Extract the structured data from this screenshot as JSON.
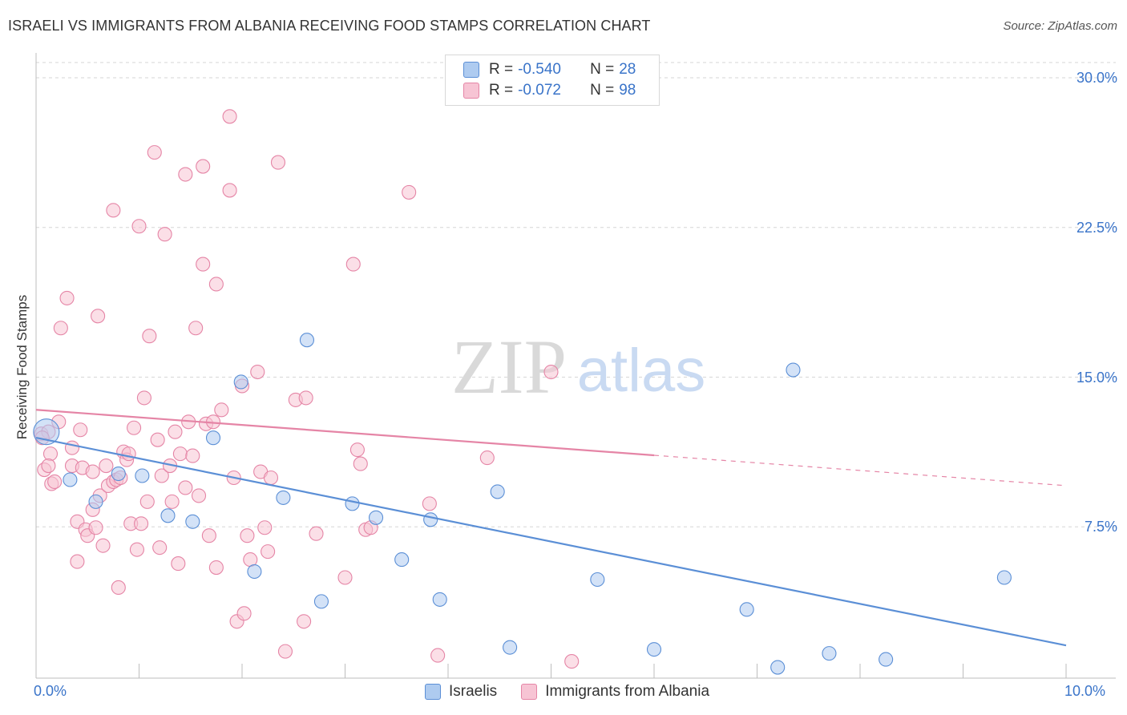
{
  "title": "ISRAELI VS IMMIGRANTS FROM ALBANIA RECEIVING FOOD STAMPS CORRELATION CHART",
  "source": "Source: ZipAtlas.com",
  "watermark": {
    "zip": "ZIP",
    "atlas": "atlas"
  },
  "legend": {
    "rows": [
      {
        "r_label": "R =",
        "r_value": "-0.540",
        "n_label": "N =",
        "n_value": "28",
        "color": "#aecbf0",
        "border": "#5b8fd6"
      },
      {
        "r_label": "R =",
        "r_value": "-0.072",
        "n_label": "N =",
        "n_value": "98",
        "color": "#f7c4d4",
        "border": "#e585a6"
      }
    ]
  },
  "bottom_legend": [
    {
      "label": "Israelis",
      "color": "#aecbf0",
      "border": "#5b8fd6"
    },
    {
      "label": "Immigrants from Albania",
      "color": "#f7c4d4",
      "border": "#e585a6"
    }
  ],
  "chart_data": {
    "type": "scatter",
    "xlabel": "",
    "ylabel": "Receiving Food Stamps",
    "xlim": [
      0,
      10
    ],
    "ylim": [
      0,
      30
    ],
    "x_tick_labels": [
      "0.0%",
      "10.0%"
    ],
    "y_ticks": [
      {
        "value": 30,
        "label": "30.0%"
      },
      {
        "value": 22.5,
        "label": "22.5%"
      },
      {
        "value": 15,
        "label": "15.0%"
      },
      {
        "value": 7.5,
        "label": "7.5%"
      }
    ],
    "grid": "horizontal dashed",
    "series": [
      {
        "name": "Israelis",
        "color": "#5b8fd6",
        "fill": "#aecbf0",
        "trend": {
          "x": [
            0.0,
            10.0
          ],
          "y": [
            10.8,
            1.6
          ],
          "dashed_from": null
        },
        "points": [
          [
            0.1,
            12.3
          ],
          [
            0.33,
            9.9
          ],
          [
            0.58,
            8.8
          ],
          [
            0.8,
            10.2
          ],
          [
            1.03,
            10.1
          ],
          [
            1.28,
            8.1
          ],
          [
            1.52,
            7.8
          ],
          [
            1.72,
            12.0
          ],
          [
            1.99,
            14.8
          ],
          [
            2.12,
            5.3
          ],
          [
            2.4,
            9.0
          ],
          [
            2.63,
            16.9
          ],
          [
            2.77,
            3.8
          ],
          [
            3.07,
            8.7
          ],
          [
            3.3,
            8.0
          ],
          [
            3.55,
            5.9
          ],
          [
            3.83,
            7.9
          ],
          [
            3.92,
            3.9
          ],
          [
            4.48,
            9.3
          ],
          [
            4.6,
            1.5
          ],
          [
            5.45,
            4.9
          ],
          [
            6.0,
            1.4
          ],
          [
            6.9,
            3.4
          ],
          [
            7.2,
            0.5
          ],
          [
            7.35,
            15.4
          ],
          [
            7.7,
            1.2
          ],
          [
            8.25,
            0.9
          ],
          [
            9.4,
            5.0
          ]
        ]
      },
      {
        "name": "Immigrants from Albania",
        "color": "#e585a6",
        "fill": "#f7c4d4",
        "trend": {
          "x": [
            0.0,
            10.0
          ],
          "y": [
            12.2,
            8.4
          ],
          "dashed_from": 6.0
        },
        "points": [
          [
            0.05,
            12.2
          ],
          [
            0.08,
            10.4
          ],
          [
            0.12,
            12.3
          ],
          [
            0.14,
            11.2
          ],
          [
            0.12,
            10.6
          ],
          [
            0.15,
            9.7
          ],
          [
            0.18,
            9.8
          ],
          [
            0.22,
            12.8
          ],
          [
            0.24,
            17.5
          ],
          [
            0.3,
            19.0
          ],
          [
            0.35,
            10.6
          ],
          [
            0.35,
            11.5
          ],
          [
            0.4,
            5.8
          ],
          [
            0.4,
            7.8
          ],
          [
            0.43,
            12.4
          ],
          [
            0.45,
            10.5
          ],
          [
            0.48,
            7.4
          ],
          [
            0.5,
            7.1
          ],
          [
            0.55,
            10.3
          ],
          [
            0.55,
            8.4
          ],
          [
            0.58,
            7.5
          ],
          [
            0.6,
            18.1
          ],
          [
            0.62,
            9.1
          ],
          [
            0.65,
            6.6
          ],
          [
            0.68,
            10.6
          ],
          [
            0.7,
            9.6
          ],
          [
            0.75,
            23.4
          ],
          [
            0.75,
            9.8
          ],
          [
            0.78,
            9.9
          ],
          [
            0.8,
            4.5
          ],
          [
            0.82,
            10.0
          ],
          [
            0.85,
            11.3
          ],
          [
            0.88,
            10.9
          ],
          [
            0.9,
            11.2
          ],
          [
            0.92,
            7.7
          ],
          [
            0.95,
            12.5
          ],
          [
            0.98,
            6.4
          ],
          [
            1.0,
            22.6
          ],
          [
            1.02,
            7.7
          ],
          [
            1.05,
            14.0
          ],
          [
            1.08,
            8.8
          ],
          [
            1.1,
            17.1
          ],
          [
            1.15,
            26.3
          ],
          [
            1.18,
            11.9
          ],
          [
            1.2,
            6.5
          ],
          [
            1.22,
            10.1
          ],
          [
            1.25,
            22.2
          ],
          [
            1.3,
            10.6
          ],
          [
            1.32,
            8.8
          ],
          [
            1.35,
            12.3
          ],
          [
            1.38,
            5.7
          ],
          [
            1.4,
            11.2
          ],
          [
            1.45,
            25.2
          ],
          [
            1.45,
            9.5
          ],
          [
            1.48,
            12.8
          ],
          [
            1.52,
            11.1
          ],
          [
            1.55,
            17.5
          ],
          [
            1.58,
            9.1
          ],
          [
            1.62,
            25.6
          ],
          [
            1.62,
            20.7
          ],
          [
            1.65,
            12.7
          ],
          [
            1.68,
            7.1
          ],
          [
            1.72,
            12.8
          ],
          [
            1.75,
            5.5
          ],
          [
            1.75,
            19.7
          ],
          [
            1.8,
            13.4
          ],
          [
            1.88,
            28.1
          ],
          [
            1.88,
            24.4
          ],
          [
            1.92,
            10.0
          ],
          [
            1.95,
            2.8
          ],
          [
            2.0,
            14.6
          ],
          [
            2.02,
            3.2
          ],
          [
            2.05,
            7.1
          ],
          [
            2.08,
            5.9
          ],
          [
            2.15,
            15.3
          ],
          [
            2.18,
            10.3
          ],
          [
            2.22,
            7.5
          ],
          [
            2.25,
            6.3
          ],
          [
            2.28,
            10.0
          ],
          [
            2.35,
            25.8
          ],
          [
            2.42,
            1.3
          ],
          [
            2.52,
            13.9
          ],
          [
            2.6,
            2.8
          ],
          [
            2.62,
            14.0
          ],
          [
            2.72,
            7.2
          ],
          [
            3.0,
            5.0
          ],
          [
            3.08,
            20.7
          ],
          [
            3.12,
            11.4
          ],
          [
            3.15,
            10.7
          ],
          [
            3.2,
            7.4
          ],
          [
            3.25,
            7.5
          ],
          [
            3.62,
            24.3
          ],
          [
            3.82,
            8.7
          ],
          [
            3.9,
            1.1
          ],
          [
            4.38,
            11.0
          ],
          [
            5.0,
            15.3
          ],
          [
            5.2,
            0.8
          ],
          [
            0.06,
            12.0
          ]
        ]
      }
    ]
  }
}
